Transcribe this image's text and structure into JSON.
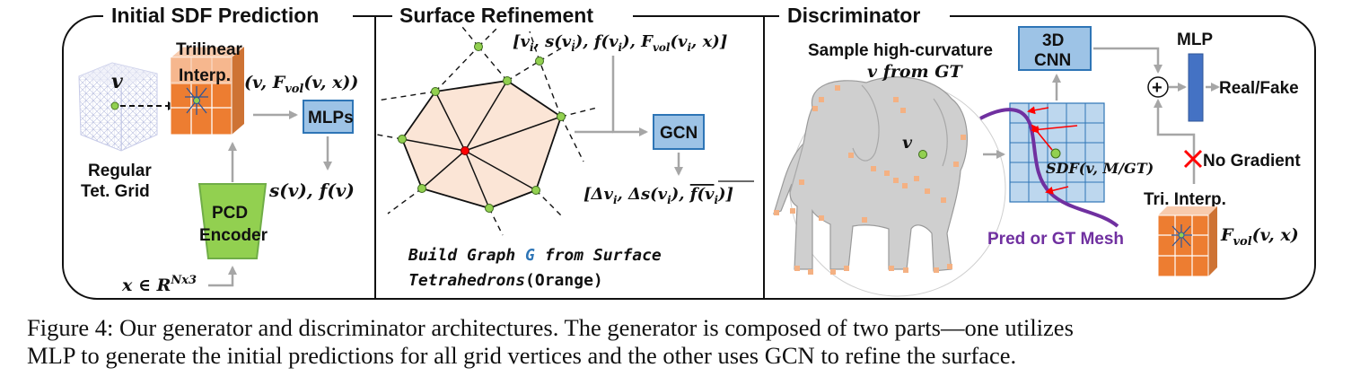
{
  "sections": {
    "initial": "Initial SDF Prediction",
    "refine": "Surface Refinement",
    "disc": "Discriminator"
  },
  "initial": {
    "v": "v",
    "trilinear1": "Trilinear",
    "trilinear2": "Interp.",
    "feature_head": "(v, F",
    "feature_sub": "vol",
    "feature_tail": "(v, x))",
    "mlps": "MLPs",
    "grid1": "Regular",
    "grid2": "Tet. Grid",
    "encoder1": "PCD",
    "encoder2": "Encoder",
    "output": "s(v), f(v)",
    "input_head": "x ∈ R",
    "input_sup": "Nx3"
  },
  "refine": {
    "gcn": "GCN",
    "input_head": "[v",
    "input_mid": ", s(v",
    "input_mid2": "), f(v",
    "input_mid3": "), F",
    "input_sub_vol": "vol",
    "input_tail": "(v",
    "input_end": ", x)]",
    "sub_i": "i",
    "output": "[Δv",
    "output_mid": ", Δs(v",
    "output_mid2": "), ",
    "output_f": "f(v",
    "output_end": ")]",
    "caption1_a": "Build Graph ",
    "caption1_g": "G",
    "caption1_b": " from Surface",
    "caption2_a": "Tetrahedrons",
    "caption2_b": "(Orange)"
  },
  "disc": {
    "sample1": "Sample high-curvature",
    "sample2": "v from GT",
    "cnn1": "3D",
    "cnn2": "CNN",
    "mlp": "MLP",
    "plus": "+",
    "realfake": "Real/Fake",
    "nograd": "No Gradient",
    "v": "v",
    "sdf": "SDF(v, M/GT)",
    "mesh": "Pred or GT Mesh",
    "triinterp": "Tri. Interp.",
    "fvol_head": "F",
    "fvol_sub": "vol",
    "fvol_tail": "(v, x)"
  },
  "caption": {
    "line1": "Figure 4: Our generator and discriminator architectures. The generator is composed of two parts—one utilizes",
    "line2": "MLP to generate the initial predictions for all grid vertices and the other uses GCN to refine the surface."
  },
  "colors": {
    "orange": "#ed7d31",
    "orange_light": "#f8cbad",
    "blue_box": "#9dc3e6",
    "blue_border": "#2e75b6",
    "green": "#92d050",
    "purple": "#7030a0",
    "hex_fill": "#fbe5d6",
    "red": "#ff0000"
  }
}
